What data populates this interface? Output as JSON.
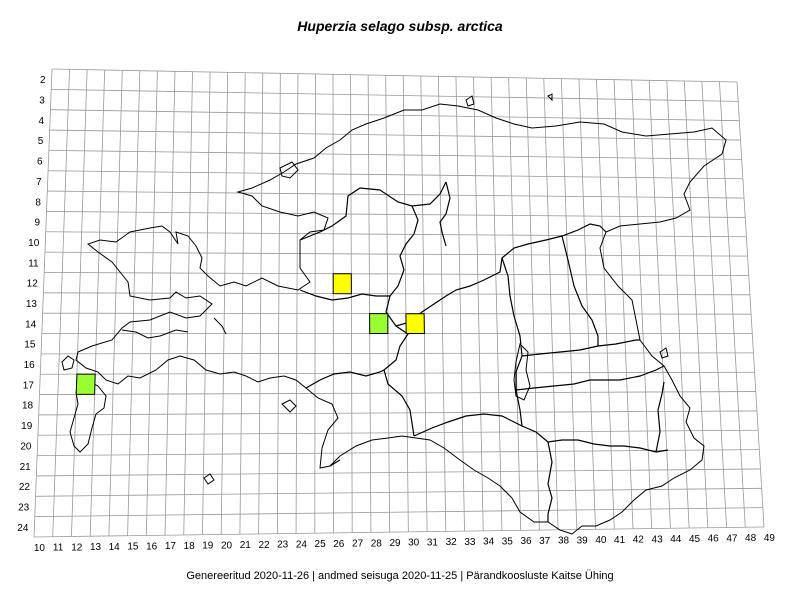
{
  "map": {
    "title": "Huperzia selago subsp. arctica",
    "x_labels": [
      "10",
      "11",
      "12",
      "13",
      "14",
      "15",
      "16",
      "17",
      "18",
      "19",
      "20",
      "21",
      "22",
      "23",
      "24",
      "25",
      "26",
      "27",
      "28",
      "29",
      "30",
      "31",
      "32",
      "33",
      "34",
      "35",
      "36",
      "37",
      "38",
      "39",
      "40",
      "41",
      "42",
      "43",
      "44",
      "45",
      "46",
      "47",
      "48",
      "49"
    ],
    "y_labels": [
      "2",
      "3",
      "4",
      "5",
      "6",
      "7",
      "8",
      "9",
      "10",
      "11",
      "12",
      "13",
      "14",
      "15",
      "16",
      "17",
      "18",
      "19",
      "20",
      "21",
      "22",
      "23",
      "24"
    ],
    "records": [
      {
        "col": 12,
        "row": 17,
        "color": "#99ff33"
      },
      {
        "col": 26,
        "row": 12,
        "color": "#ffff00"
      },
      {
        "col": 28,
        "row": 14,
        "color": "#99ff33"
      },
      {
        "col": 30,
        "row": 14,
        "color": "#ffff00"
      }
    ]
  },
  "footer": {
    "text": "Genereeritud 2020-11-26  |  andmed seisuga 2020-11-25  |  Pärandkoosluste Kaitse Ühing"
  }
}
